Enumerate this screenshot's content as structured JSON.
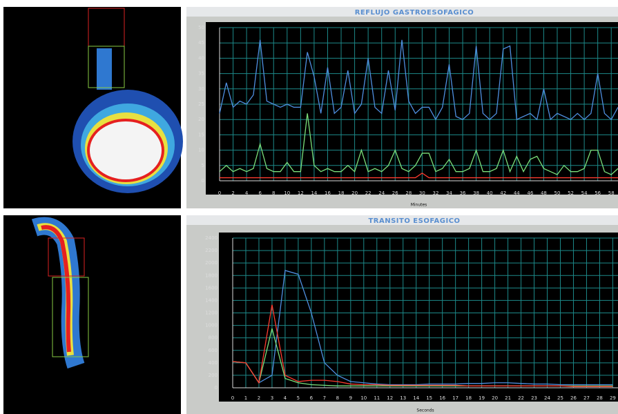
{
  "chart_data": [
    {
      "type": "line",
      "title": "REFLUJO GASTROESOFAGICO",
      "x_label": "Minutes",
      "x": [
        0,
        1,
        2,
        3,
        4,
        5,
        6,
        7,
        8,
        9,
        10,
        11,
        12,
        13,
        14,
        15,
        16,
        17,
        18,
        19,
        20,
        21,
        22,
        23,
        24,
        25,
        26,
        27,
        28,
        29,
        30,
        31,
        32,
        33,
        34,
        35,
        36,
        37,
        38,
        39,
        40,
        41,
        42,
        43,
        44,
        45,
        46,
        47,
        48,
        49,
        50,
        51,
        52,
        53,
        54,
        55,
        56,
        57,
        58,
        59
      ],
      "series": [
        {
          "color": "#4f8fe0",
          "values": [
            22,
            32,
            24,
            26,
            25,
            28,
            46,
            26,
            25,
            24,
            25,
            24,
            24,
            42,
            34,
            22,
            37,
            22,
            24,
            36,
            22,
            25,
            40,
            24,
            22,
            36,
            23,
            46,
            26,
            22,
            24,
            24,
            20,
            24,
            38,
            21,
            20,
            22,
            44,
            22,
            20,
            22,
            43,
            44,
            20,
            21,
            22,
            20,
            30,
            20,
            22,
            21,
            20,
            22,
            20,
            22,
            35,
            22,
            20,
            24
          ]
        },
        {
          "color": "#7be07b",
          "values": [
            3,
            5,
            3,
            4,
            3,
            4,
            12,
            4,
            3,
            3,
            6,
            3,
            3,
            22,
            5,
            3,
            4,
            3,
            3,
            5,
            3,
            10,
            3,
            4,
            3,
            5,
            10,
            4,
            3,
            5,
            9,
            9,
            3,
            4,
            7,
            3,
            3,
            4,
            10,
            3,
            3,
            4,
            10,
            3,
            8,
            3,
            7,
            8,
            4,
            3,
            2,
            5,
            3,
            3,
            4,
            10,
            10,
            3,
            2,
            4
          ]
        },
        {
          "color": "#ff3b2f",
          "values": [
            1,
            1,
            1,
            1,
            1,
            1,
            1,
            1,
            1,
            1,
            1,
            1,
            1,
            1,
            1,
            1,
            1,
            1,
            1,
            1,
            1,
            1,
            1,
            1,
            1,
            1,
            1,
            1,
            1,
            1,
            2.5,
            1,
            1,
            1,
            1,
            1,
            1,
            1,
            1,
            1,
            1,
            1,
            1,
            1,
            1,
            1,
            1,
            1,
            1,
            1,
            1,
            1,
            1,
            1,
            1,
            1,
            1,
            1,
            1,
            1
          ]
        }
      ],
      "xlim": [
        0,
        59
      ],
      "xticks": [
        0,
        2,
        4,
        6,
        8,
        10,
        12,
        14,
        16,
        18,
        20,
        22,
        24,
        26,
        28,
        30,
        32,
        34,
        36,
        38,
        40,
        42,
        44,
        46,
        48,
        50,
        52,
        54,
        56,
        58
      ],
      "ylim": [
        0,
        50
      ],
      "yticks": [
        0,
        5,
        10,
        15,
        20,
        25,
        30,
        35,
        40,
        45,
        50
      ],
      "grid": true
    },
    {
      "type": "line",
      "title": "TRANSITO ESOFAGICO",
      "x_label": "Seconds",
      "x": [
        0,
        1,
        2,
        3,
        4,
        5,
        6,
        7,
        8,
        9,
        10,
        11,
        12,
        13,
        14,
        15,
        16,
        17,
        18,
        19,
        20,
        21,
        22,
        23,
        24,
        25,
        26,
        27,
        28,
        29
      ],
      "series": [
        {
          "color": "#4f8fe0",
          "values": [
            420,
            400,
            80,
            200,
            1880,
            1820,
            1200,
            400,
            200,
            100,
            80,
            60,
            50,
            50,
            50,
            60,
            60,
            60,
            70,
            70,
            80,
            80,
            70,
            60,
            60,
            50,
            50,
            50,
            50,
            50
          ]
        },
        {
          "color": "#7be07b",
          "values": [
            420,
            400,
            80,
            950,
            150,
            80,
            50,
            40,
            30,
            30,
            30,
            30,
            30,
            30,
            30,
            30,
            30,
            30,
            30,
            30,
            30,
            30,
            30,
            30,
            30,
            30,
            30,
            30,
            30,
            30
          ]
        },
        {
          "color": "#ff3b2f",
          "values": [
            420,
            400,
            80,
            1330,
            200,
            100,
            120,
            120,
            100,
            60,
            50,
            50,
            40,
            40,
            40,
            40,
            40,
            40,
            30,
            30,
            30,
            30,
            30,
            30,
            30,
            30,
            20,
            20,
            20,
            20
          ]
        }
      ],
      "xlim": [
        0,
        29.4
      ],
      "xticks": [
        0,
        1,
        2,
        3,
        4,
        5,
        6,
        7,
        8,
        9,
        10,
        11,
        12,
        13,
        14,
        15,
        16,
        17,
        18,
        19,
        20,
        21,
        22,
        23,
        24,
        25,
        26,
        27,
        28,
        29
      ],
      "ylim": [
        0,
        2400
      ],
      "yticks": [
        0,
        200,
        400,
        600,
        800,
        1000,
        1200,
        1400,
        1600,
        1800,
        2000,
        2200,
        2400
      ],
      "grid": true
    }
  ]
}
